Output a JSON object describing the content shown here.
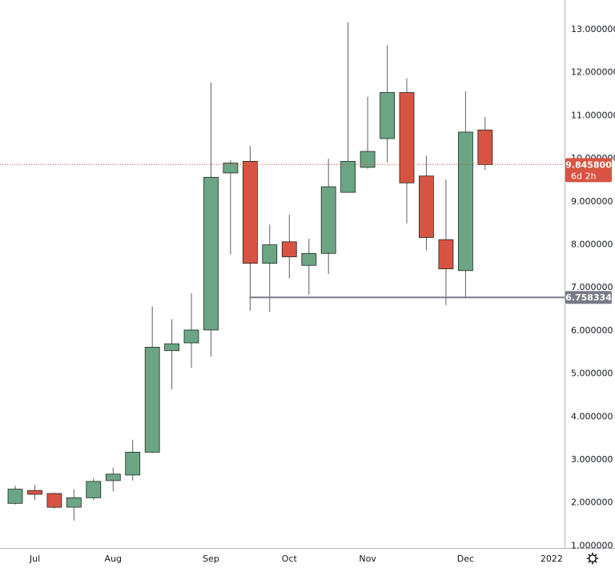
{
  "chart_data": {
    "type": "candlestick",
    "interval": "weekly",
    "y_scale": "linear",
    "ylim": [
      1.0,
      13.8
    ],
    "y_ticks": [
      "1.000000",
      "2.000000",
      "3.000000",
      "4.000000",
      "5.000000",
      "6.000000",
      "7.000000",
      "8.000000",
      "9.000000",
      "10.000000",
      "11.000000",
      "12.000000",
      "13.000000"
    ],
    "y_tick_values": [
      1,
      2,
      3,
      4,
      5,
      6,
      7,
      8,
      9,
      10,
      11,
      12,
      13
    ],
    "x_ticks": [
      {
        "label": "Jul",
        "after_index": 1
      },
      {
        "label": "Aug",
        "after_index": 5
      },
      {
        "label": "Sep",
        "after_index": 10
      },
      {
        "label": "Oct",
        "after_index": 14
      },
      {
        "label": "Nov",
        "after_index": 18
      },
      {
        "label": "Dec",
        "after_index": 23
      },
      {
        "label": "2022",
        "after_index": 27.4
      }
    ],
    "colors": {
      "up": "#6ba583",
      "down": "#d75442",
      "border": "#1f2a26",
      "wick": "#5d606b",
      "horizontal_line": "#787b86",
      "current_price": "#d75442",
      "axis_line": "#b2b5be"
    },
    "candles": [
      {
        "o": 1.97,
        "h": 2.38,
        "l": 1.94,
        "c": 2.3
      },
      {
        "o": 2.27,
        "h": 2.4,
        "l": 2.05,
        "c": 2.18
      },
      {
        "o": 2.2,
        "h": 2.22,
        "l": 1.85,
        "c": 1.88
      },
      {
        "o": 1.88,
        "h": 2.3,
        "l": 1.57,
        "c": 2.1
      },
      {
        "o": 2.1,
        "h": 2.55,
        "l": 2.05,
        "c": 2.48
      },
      {
        "o": 2.5,
        "h": 2.8,
        "l": 2.25,
        "c": 2.65
      },
      {
        "o": 2.63,
        "h": 3.45,
        "l": 2.5,
        "c": 3.16
      },
      {
        "o": 3.16,
        "h": 6.55,
        "l": 3.14,
        "c": 5.6
      },
      {
        "o": 5.52,
        "h": 6.25,
        "l": 4.62,
        "c": 5.68
      },
      {
        "o": 5.7,
        "h": 6.85,
        "l": 5.12,
        "c": 6.0
      },
      {
        "o": 6.0,
        "h": 11.75,
        "l": 5.38,
        "c": 9.55
      },
      {
        "o": 9.65,
        "h": 9.95,
        "l": 7.76,
        "c": 9.88
      },
      {
        "o": 9.92,
        "h": 10.28,
        "l": 6.45,
        "c": 7.55
      },
      {
        "o": 7.55,
        "h": 8.45,
        "l": 6.42,
        "c": 7.98
      },
      {
        "o": 8.05,
        "h": 8.68,
        "l": 7.2,
        "c": 7.7
      },
      {
        "o": 7.5,
        "h": 8.12,
        "l": 6.82,
        "c": 7.78
      },
      {
        "o": 7.78,
        "h": 9.98,
        "l": 7.3,
        "c": 9.33
      },
      {
        "o": 9.2,
        "h": 13.15,
        "l": 9.2,
        "c": 9.92
      },
      {
        "o": 9.78,
        "h": 11.42,
        "l": 9.75,
        "c": 10.15
      },
      {
        "o": 10.45,
        "h": 12.62,
        "l": 9.9,
        "c": 11.52
      },
      {
        "o": 11.52,
        "h": 11.85,
        "l": 8.48,
        "c": 9.42
      },
      {
        "o": 9.58,
        "h": 10.05,
        "l": 7.85,
        "c": 8.15
      },
      {
        "o": 8.1,
        "h": 9.5,
        "l": 6.58,
        "c": 7.42
      },
      {
        "o": 7.38,
        "h": 11.55,
        "l": 6.75,
        "c": 10.6
      },
      {
        "o": 10.65,
        "h": 10.95,
        "l": 9.72,
        "c": 9.8458
      }
    ],
    "horizontal_line": {
      "value": 6.758334,
      "label": "6.758334",
      "from_index": 12
    },
    "current_price": {
      "value": 9.8458,
      "label": "9.845800",
      "countdown": "6d 2h"
    }
  },
  "axis": {
    "settings_icon": "gear-icon"
  }
}
